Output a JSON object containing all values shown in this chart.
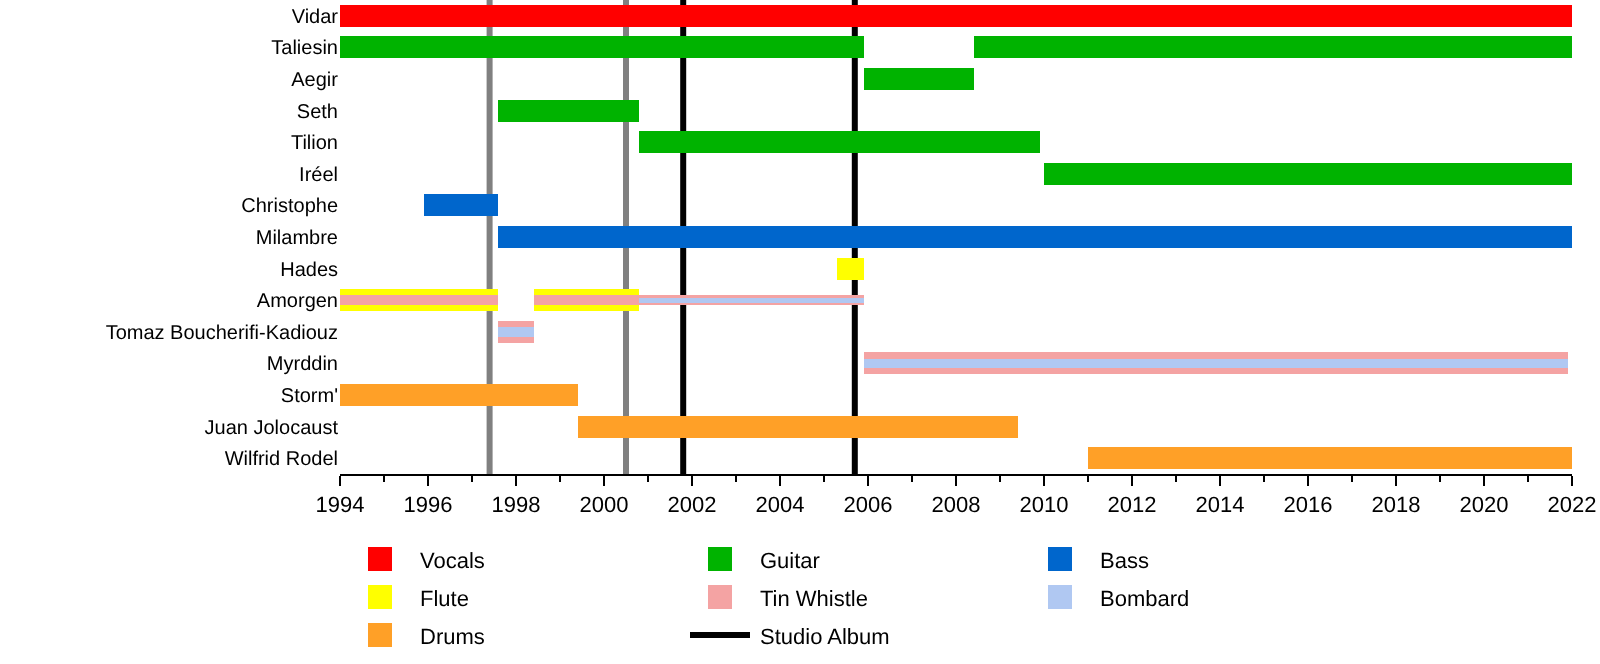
{
  "chart_data": {
    "type": "bar",
    "orientation": "horizontal",
    "legend": "bottom",
    "categories": [
      "Vidar",
      "Taliesin",
      "Aegir",
      "Seth",
      "Tilion",
      "Iréel",
      "Christophe",
      "Milambre",
      "Hades",
      "Amorgen",
      "Tomaz Boucherifi-Kadiouz",
      "Myrddin",
      "Storm'",
      "Juan Jolocaust",
      "Wilfrid Rodel"
    ],
    "xlim": [
      1994,
      2022
    ],
    "xticks": [
      1994,
      1996,
      1998,
      2000,
      2002,
      2004,
      2006,
      2008,
      2010,
      2012,
      2014,
      2016,
      2018,
      2020,
      2022
    ],
    "series": [
      {
        "name": "Vocals",
        "color": "#ff0000",
        "base": [
          1994,
          null,
          null,
          null,
          null,
          null,
          null,
          null,
          null,
          null,
          null,
          null,
          null,
          null,
          null
        ],
        "values": [
          28,
          null,
          null,
          null,
          null,
          null,
          null,
          null,
          null,
          null,
          null,
          null,
          null,
          null,
          null
        ]
      },
      {
        "name": "Guitar",
        "color": "#00b300",
        "base": [
          null,
          1994,
          2005.9,
          1997.6,
          2000.8,
          2010,
          null,
          null,
          null,
          null,
          null,
          null,
          null,
          null,
          null
        ],
        "values": [
          null,
          11.9,
          2.5,
          3.2,
          9.1,
          12,
          null,
          null,
          null,
          null,
          null,
          null,
          null,
          null,
          null
        ]
      },
      {
        "color": "#00b300",
        "base": [
          null,
          2008.4,
          null,
          null,
          null,
          null,
          null,
          null,
          null,
          null,
          null,
          null,
          null,
          null,
          null
        ],
        "values": [
          null,
          13.6,
          null,
          null,
          null,
          null,
          null,
          null,
          null,
          null,
          null,
          null,
          null,
          null,
          null
        ]
      },
      {
        "name": "Bass",
        "color": "#0066cc",
        "base": [
          null,
          null,
          null,
          null,
          null,
          null,
          1995.9,
          1997.6,
          null,
          null,
          null,
          null,
          null,
          null,
          null
        ],
        "values": [
          null,
          null,
          null,
          null,
          null,
          null,
          1.7,
          24.4,
          null,
          null,
          null,
          null,
          null,
          null,
          null
        ]
      },
      {
        "name": "Flute",
        "color": "#ffff00",
        "base": [
          null,
          null,
          null,
          null,
          null,
          null,
          null,
          null,
          2005.3,
          1994,
          null,
          null,
          null,
          null,
          null
        ],
        "values": [
          null,
          null,
          null,
          null,
          null,
          null,
          null,
          null,
          0.6,
          3.6,
          null,
          null,
          null,
          null,
          null
        ]
      },
      {
        "color": "#ffff00",
        "base": [
          null,
          null,
          null,
          null,
          null,
          null,
          null,
          null,
          null,
          1998.4,
          null,
          null,
          null,
          null,
          null
        ],
        "values": [
          null,
          null,
          null,
          null,
          null,
          null,
          null,
          null,
          null,
          2.4,
          null,
          null,
          null,
          null,
          null
        ]
      },
      {
        "name": "Tin Whistle",
        "color": "#f4a3a3",
        "base": [
          null,
          null,
          null,
          null,
          null,
          null,
          null,
          null,
          null,
          1994,
          1997.6,
          2005.9,
          null,
          null,
          null
        ],
        "values": [
          null,
          null,
          null,
          null,
          null,
          null,
          null,
          null,
          null,
          3.6,
          0.8,
          16,
          null,
          null,
          null
        ]
      },
      {
        "color": "#f4a3a3",
        "base": [
          null,
          null,
          null,
          null,
          null,
          null,
          null,
          null,
          null,
          1998.4,
          null,
          null,
          null,
          null,
          null
        ],
        "values": [
          null,
          null,
          null,
          null,
          null,
          null,
          null,
          null,
          null,
          7.5,
          null,
          null,
          null,
          null,
          null
        ]
      },
      {
        "name": "Bombard",
        "color": "#b0c8f2",
        "base": [
          null,
          null,
          null,
          null,
          null,
          null,
          null,
          null,
          null,
          2000.8,
          1997.6,
          2005.9,
          null,
          null,
          null
        ],
        "values": [
          null,
          null,
          null,
          null,
          null,
          null,
          null,
          null,
          null,
          5.1,
          0.8,
          16,
          null,
          null,
          null
        ]
      },
      {
        "name": "Drums",
        "color": "#ffa027",
        "base": [
          null,
          null,
          null,
          null,
          null,
          null,
          null,
          null,
          null,
          null,
          null,
          null,
          1994,
          1999.4,
          2011
        ],
        "values": [
          null,
          null,
          null,
          null,
          null,
          null,
          null,
          null,
          null,
          null,
          null,
          null,
          5.4,
          10,
          11
        ]
      }
    ],
    "ref_lines": [
      {
        "axis": "x",
        "value": 1997.4,
        "label": null,
        "color": "#808080"
      },
      {
        "axis": "x",
        "value": 2000.5,
        "label": null,
        "color": "#808080"
      },
      {
        "axis": "x",
        "value": 2001.8,
        "label": "Studio Album",
        "color": "#000000"
      },
      {
        "axis": "x",
        "value": 2005.7,
        "label": null,
        "color": "#000000"
      }
    ]
  }
}
